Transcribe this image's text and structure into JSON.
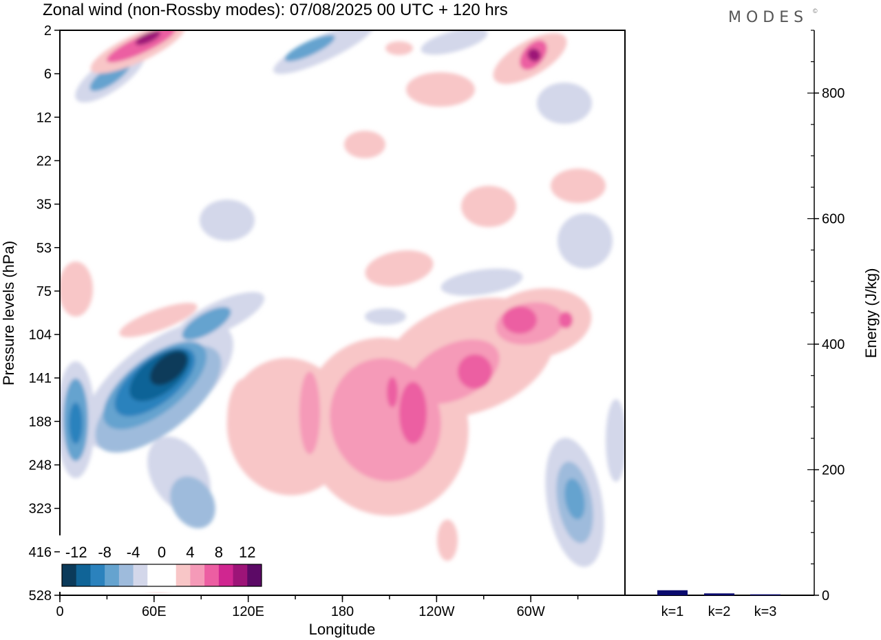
{
  "chart_data": [
    {
      "type": "heatmap",
      "title": "Zonal wind (non-Rossby modes):  07/08/2025  00 UTC  + 120 hrs",
      "xlabel": "Longitude",
      "ylabel": "Pressure levels (hPa)",
      "x_ticks": [
        {
          "lon": 0,
          "label": "0"
        },
        {
          "lon": 60,
          "label": "60E"
        },
        {
          "lon": 120,
          "label": "120E"
        },
        {
          "lon": 180,
          "label": "180"
        },
        {
          "lon": 240,
          "label": "120W"
        },
        {
          "lon": 300,
          "label": "60W"
        }
      ],
      "xlim": [
        0,
        360
      ],
      "y_levels": [
        "2",
        "6",
        "12",
        "22",
        "35",
        "53",
        "75",
        "104",
        "141",
        "188",
        "248",
        "323",
        "416",
        "528"
      ],
      "colorbar": {
        "tick_labels": [
          "-12",
          "-8",
          "-4",
          "0",
          "4",
          "8",
          "12"
        ],
        "colors": [
          "#0b3a5a",
          "#106497",
          "#2b82bd",
          "#65a3cf",
          "#9ebbdc",
          "#d3d7ea",
          "#ffffff",
          "#ffffff",
          "#f8c6c7",
          "#f59ab8",
          "#ec5ea2",
          "#d02690",
          "#9d1478",
          "#5c0a66"
        ]
      },
      "features": [
        {
          "name": "strong easterly core",
          "lon": 72,
          "level": "141",
          "value": -14
        },
        {
          "name": "easterly tail",
          "lon": 95,
          "level": "104",
          "value": -8
        },
        {
          "name": "westerly band",
          "lon": 230,
          "level": "141",
          "value": 8
        },
        {
          "name": "westerly maximum",
          "lon": 300,
          "level": "104",
          "value": 9
        },
        {
          "name": "lower easterly",
          "lon": 330,
          "level": "323",
          "value": -7
        },
        {
          "name": "west lower easterly",
          "lon": 10,
          "level": "188",
          "value": -7
        },
        {
          "name": "upper westerly",
          "lon": 60,
          "level": "2",
          "value": 10
        },
        {
          "name": "upper westerly east",
          "lon": 305,
          "level": "6",
          "value": 11
        }
      ]
    },
    {
      "type": "bar",
      "ylabel": "Energy (J/kg)",
      "categories": [
        "k=1",
        "k=2",
        "k=3"
      ],
      "values": [
        8,
        3,
        1.5
      ],
      "ylim": [
        0,
        900
      ],
      "y_ticks": [
        {
          "value": 0,
          "label": "0"
        },
        {
          "value": 200,
          "label": "200"
        },
        {
          "value": 400,
          "label": "400"
        },
        {
          "value": 600,
          "label": "600"
        },
        {
          "value": 800,
          "label": "800"
        }
      ],
      "bar_color": "#0b0b6e"
    }
  ],
  "brand": "MODES",
  "brand_mark": "©"
}
